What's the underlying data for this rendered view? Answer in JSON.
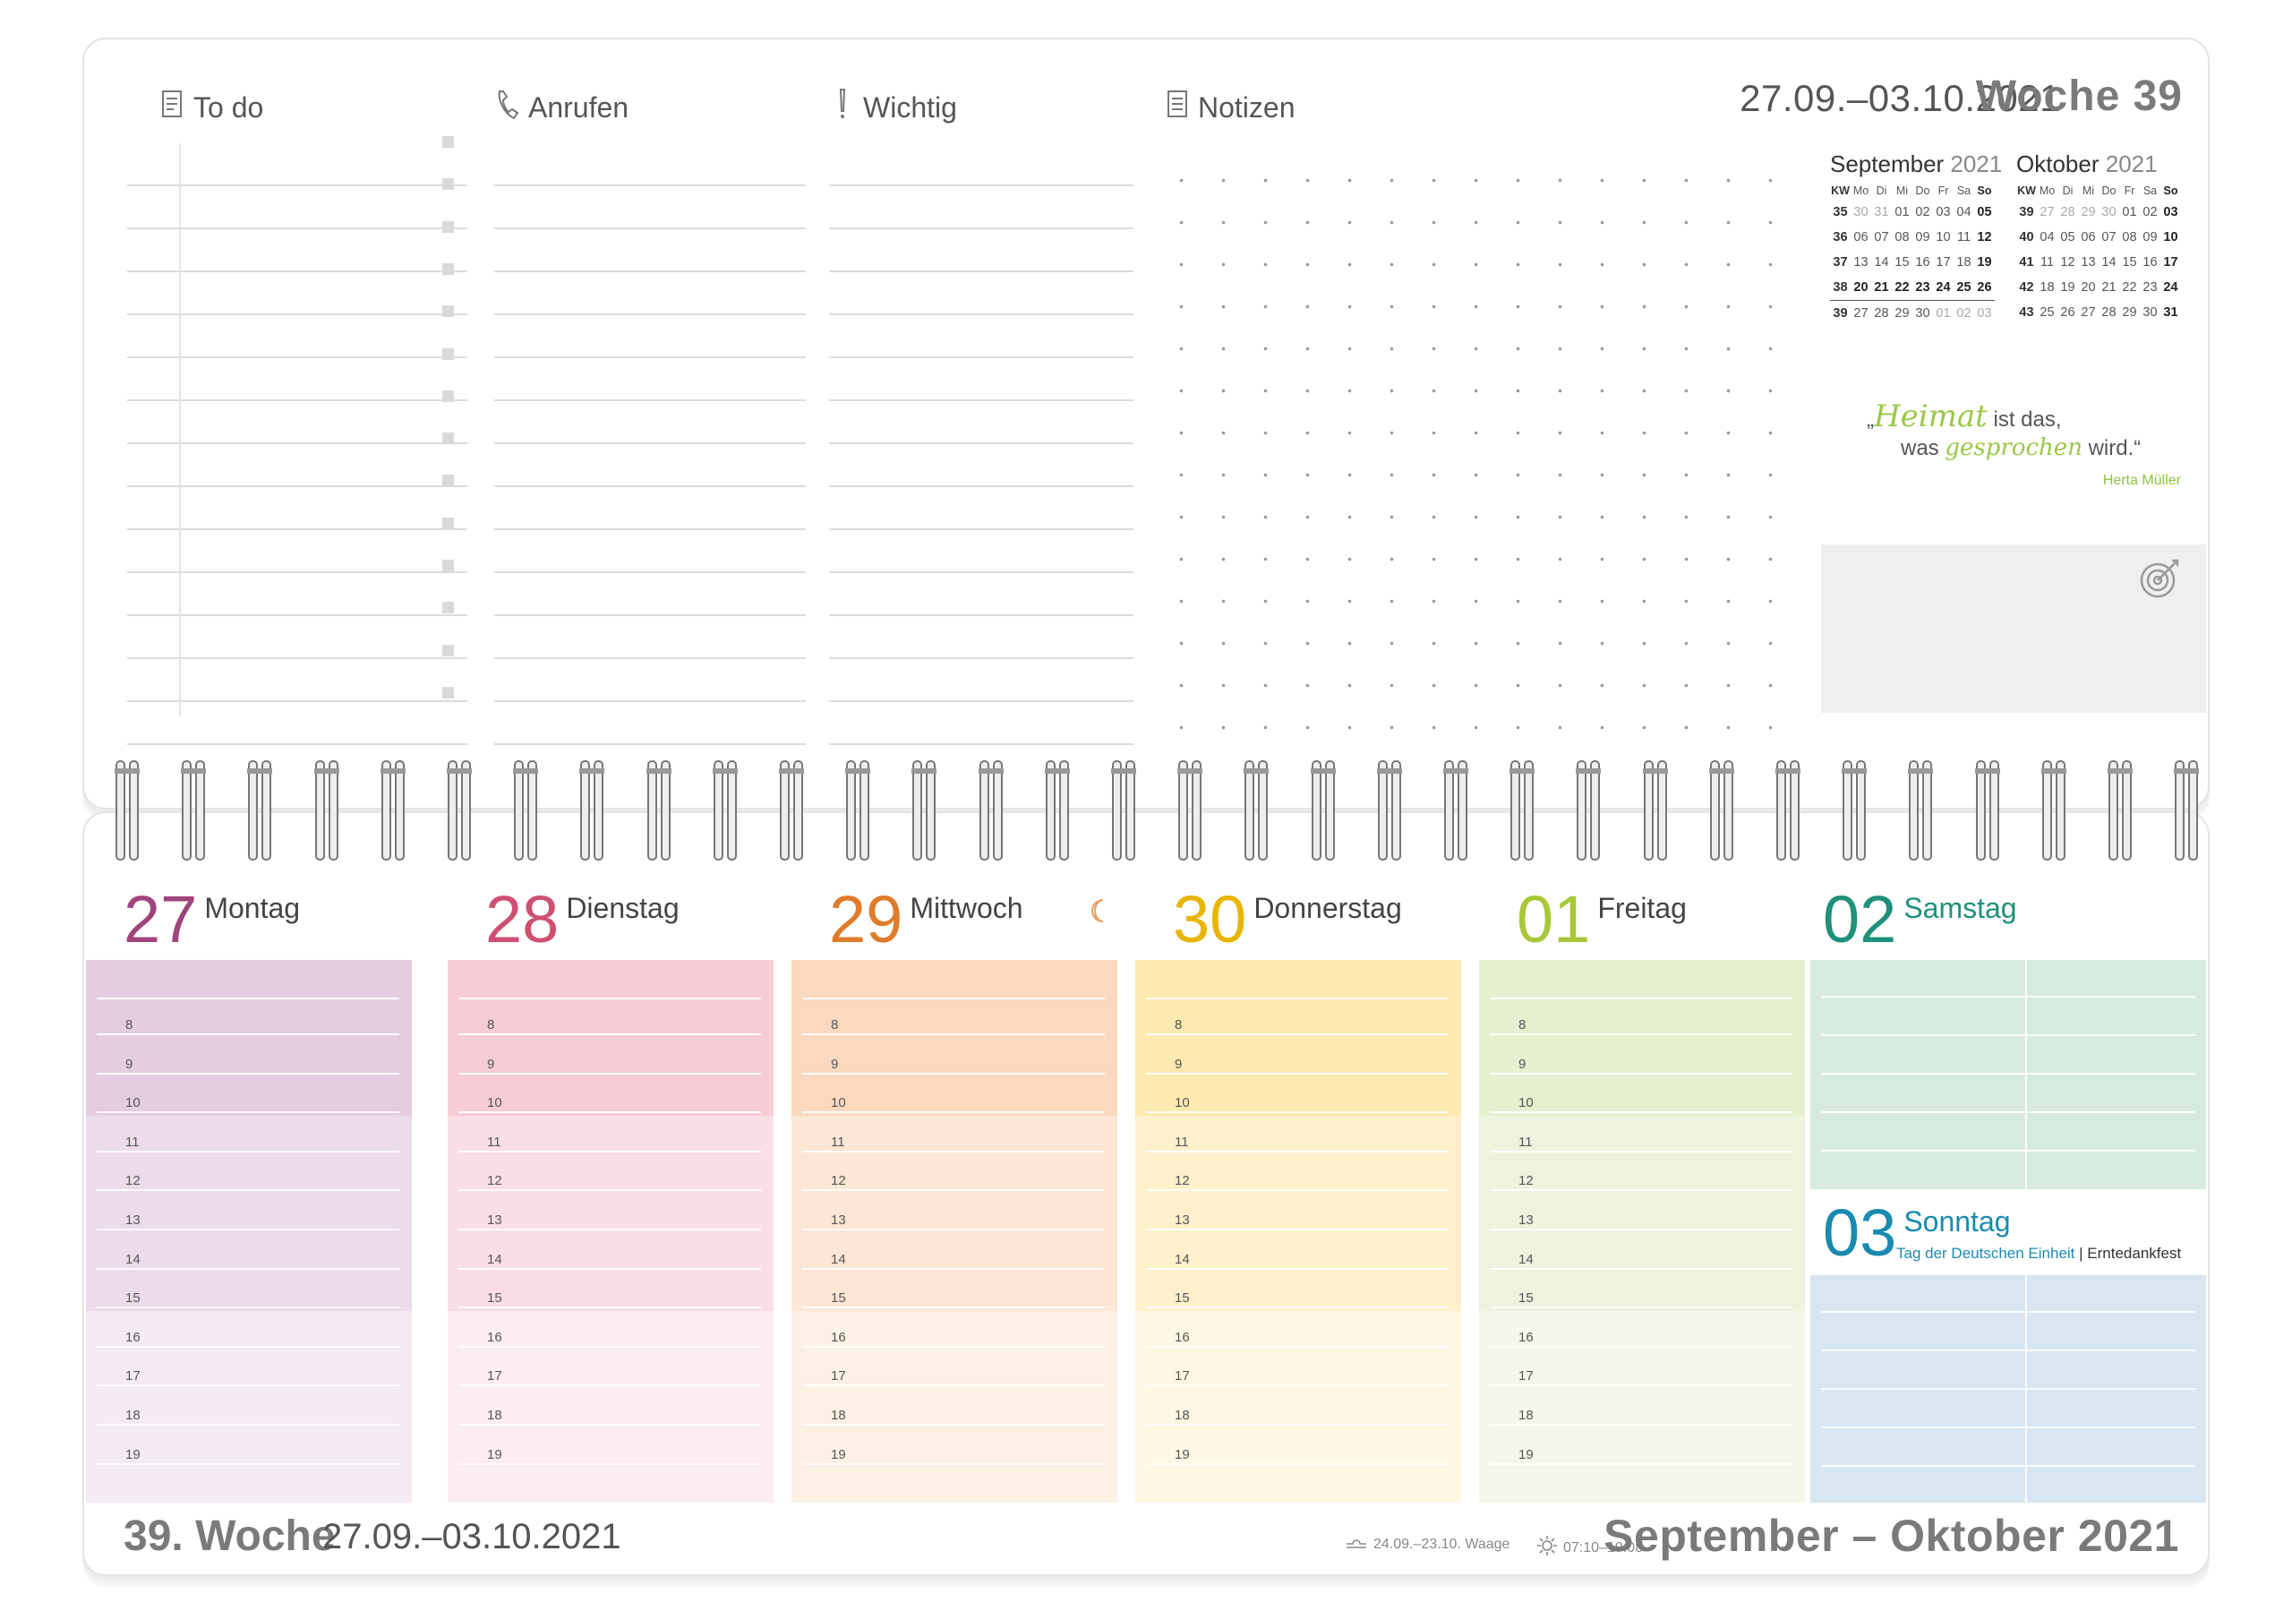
{
  "top": {
    "headers": {
      "todo": "To do",
      "anrufen": "Anrufen",
      "wichtig": "Wichtig",
      "notizen": "Notizen"
    },
    "week_range": "27.09.–03.10.2021",
    "week_label": "Woche 39"
  },
  "mini_calendars": [
    {
      "month": "September",
      "year": "2021",
      "headers": [
        "KW",
        "Mo",
        "Di",
        "Mi",
        "Do",
        "Fr",
        "Sa",
        "So"
      ],
      "rows": [
        [
          "35",
          "30",
          "31",
          "01",
          "02",
          "03",
          "04",
          "05"
        ],
        [
          "36",
          "06",
          "07",
          "08",
          "09",
          "10",
          "11",
          "12"
        ],
        [
          "37",
          "13",
          "14",
          "15",
          "16",
          "17",
          "18",
          "19"
        ],
        [
          "38",
          "20",
          "21",
          "22",
          "23",
          "24",
          "25",
          "26"
        ],
        [
          "39",
          "27",
          "28",
          "29",
          "30",
          "01",
          "02",
          "03"
        ]
      ]
    },
    {
      "month": "Oktober",
      "year": "2021",
      "headers": [
        "KW",
        "Mo",
        "Di",
        "Mi",
        "Do",
        "Fr",
        "Sa",
        "So"
      ],
      "rows": [
        [
          "39",
          "27",
          "28",
          "29",
          "30",
          "01",
          "02",
          "03"
        ],
        [
          "40",
          "04",
          "05",
          "06",
          "07",
          "08",
          "09",
          "10"
        ],
        [
          "41",
          "11",
          "12",
          "13",
          "14",
          "15",
          "16",
          "17"
        ],
        [
          "42",
          "18",
          "19",
          "20",
          "21",
          "22",
          "23",
          "24"
        ],
        [
          "43",
          "25",
          "26",
          "27",
          "28",
          "29",
          "30",
          "31"
        ]
      ]
    }
  ],
  "quote": {
    "open": "„",
    "word1": "Heimat",
    "part1": " ist das,",
    "part2a": "was ",
    "word2": "gesprochen",
    "part2b": " wird.“",
    "author": "Herta Müller"
  },
  "days": [
    {
      "num": "27",
      "name": "Montag",
      "color": "#a0447e"
    },
    {
      "num": "28",
      "name": "Dienstag",
      "color": "#cf4f72"
    },
    {
      "num": "29",
      "name": "Mittwoch",
      "color": "#e07b2a"
    },
    {
      "num": "30",
      "name": "Donnerstag",
      "color": "#e8b500"
    },
    {
      "num": "01",
      "name": "Freitag",
      "color": "#a8c83a"
    }
  ],
  "hours": [
    "8",
    "9",
    "10",
    "11",
    "12",
    "13",
    "14",
    "15",
    "16",
    "17",
    "18",
    "19"
  ],
  "weekend": {
    "sat_num": "02",
    "sat_name": "Samstag",
    "sat_color": "#1f9079",
    "sun_num": "03",
    "sun_name": "Sonntag",
    "sun_color": "#1a8bb0",
    "holiday_blue": "Tag der Deutschen Einheit",
    "holiday_sep": " | ",
    "holiday_rest": "Erntedankfest"
  },
  "footer": {
    "week": "39. Woche",
    "range": "27.09.–03.10.2021",
    "zodiac": "24.09.–23.10. Waage",
    "sun": "07:10–19:08",
    "months": "September – Oktober 2021"
  }
}
